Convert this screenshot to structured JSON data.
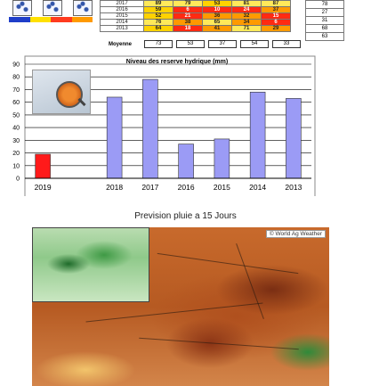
{
  "top_table": {
    "rows": [
      {
        "year": "2017",
        "values": [
          "89",
          "79",
          "53",
          "81",
          "87"
        ]
      },
      {
        "year": "2016",
        "values": [
          "59",
          "6",
          "10",
          "24",
          "37"
        ]
      },
      {
        "year": "2015",
        "values": [
          "52",
          "21",
          "36",
          "32",
          "15"
        ]
      },
      {
        "year": "2014",
        "values": [
          "76",
          "38",
          "65",
          "34",
          "6"
        ]
      },
      {
        "year": "2013",
        "values": [
          "64",
          "18",
          "41",
          "71",
          "29"
        ]
      }
    ],
    "side_values": [
      "78",
      "27",
      "31",
      "68",
      "63"
    ],
    "average_label": "Moyenne",
    "averages": [
      "73",
      "53",
      "37",
      "54",
      "33"
    ]
  },
  "colors": {
    "bar_default": "#9b9bf5",
    "bar_highlight": "#ff1a1a",
    "scale": [
      "#1f3ec9",
      "#ffe000",
      "#ff3b1f",
      "#ff9a00"
    ]
  },
  "chart_data": {
    "type": "bar",
    "title": "Niveau des reserve hydrique (mm)",
    "categories": [
      "2019",
      "",
      "2018",
      "2017",
      "2016",
      "2015",
      "2014",
      "2013"
    ],
    "values": [
      19,
      null,
      64,
      78,
      27,
      31,
      68,
      63
    ],
    "highlight_category": "2019",
    "ylim": [
      0,
      90
    ],
    "yticks": [
      0,
      10,
      20,
      30,
      40,
      50,
      60,
      70,
      80,
      90
    ],
    "grid": true,
    "xlabel": "",
    "ylabel": ""
  },
  "forecast": {
    "title": "Prevision pluie a 15 Jours",
    "credit": "© World Ag Weather"
  }
}
